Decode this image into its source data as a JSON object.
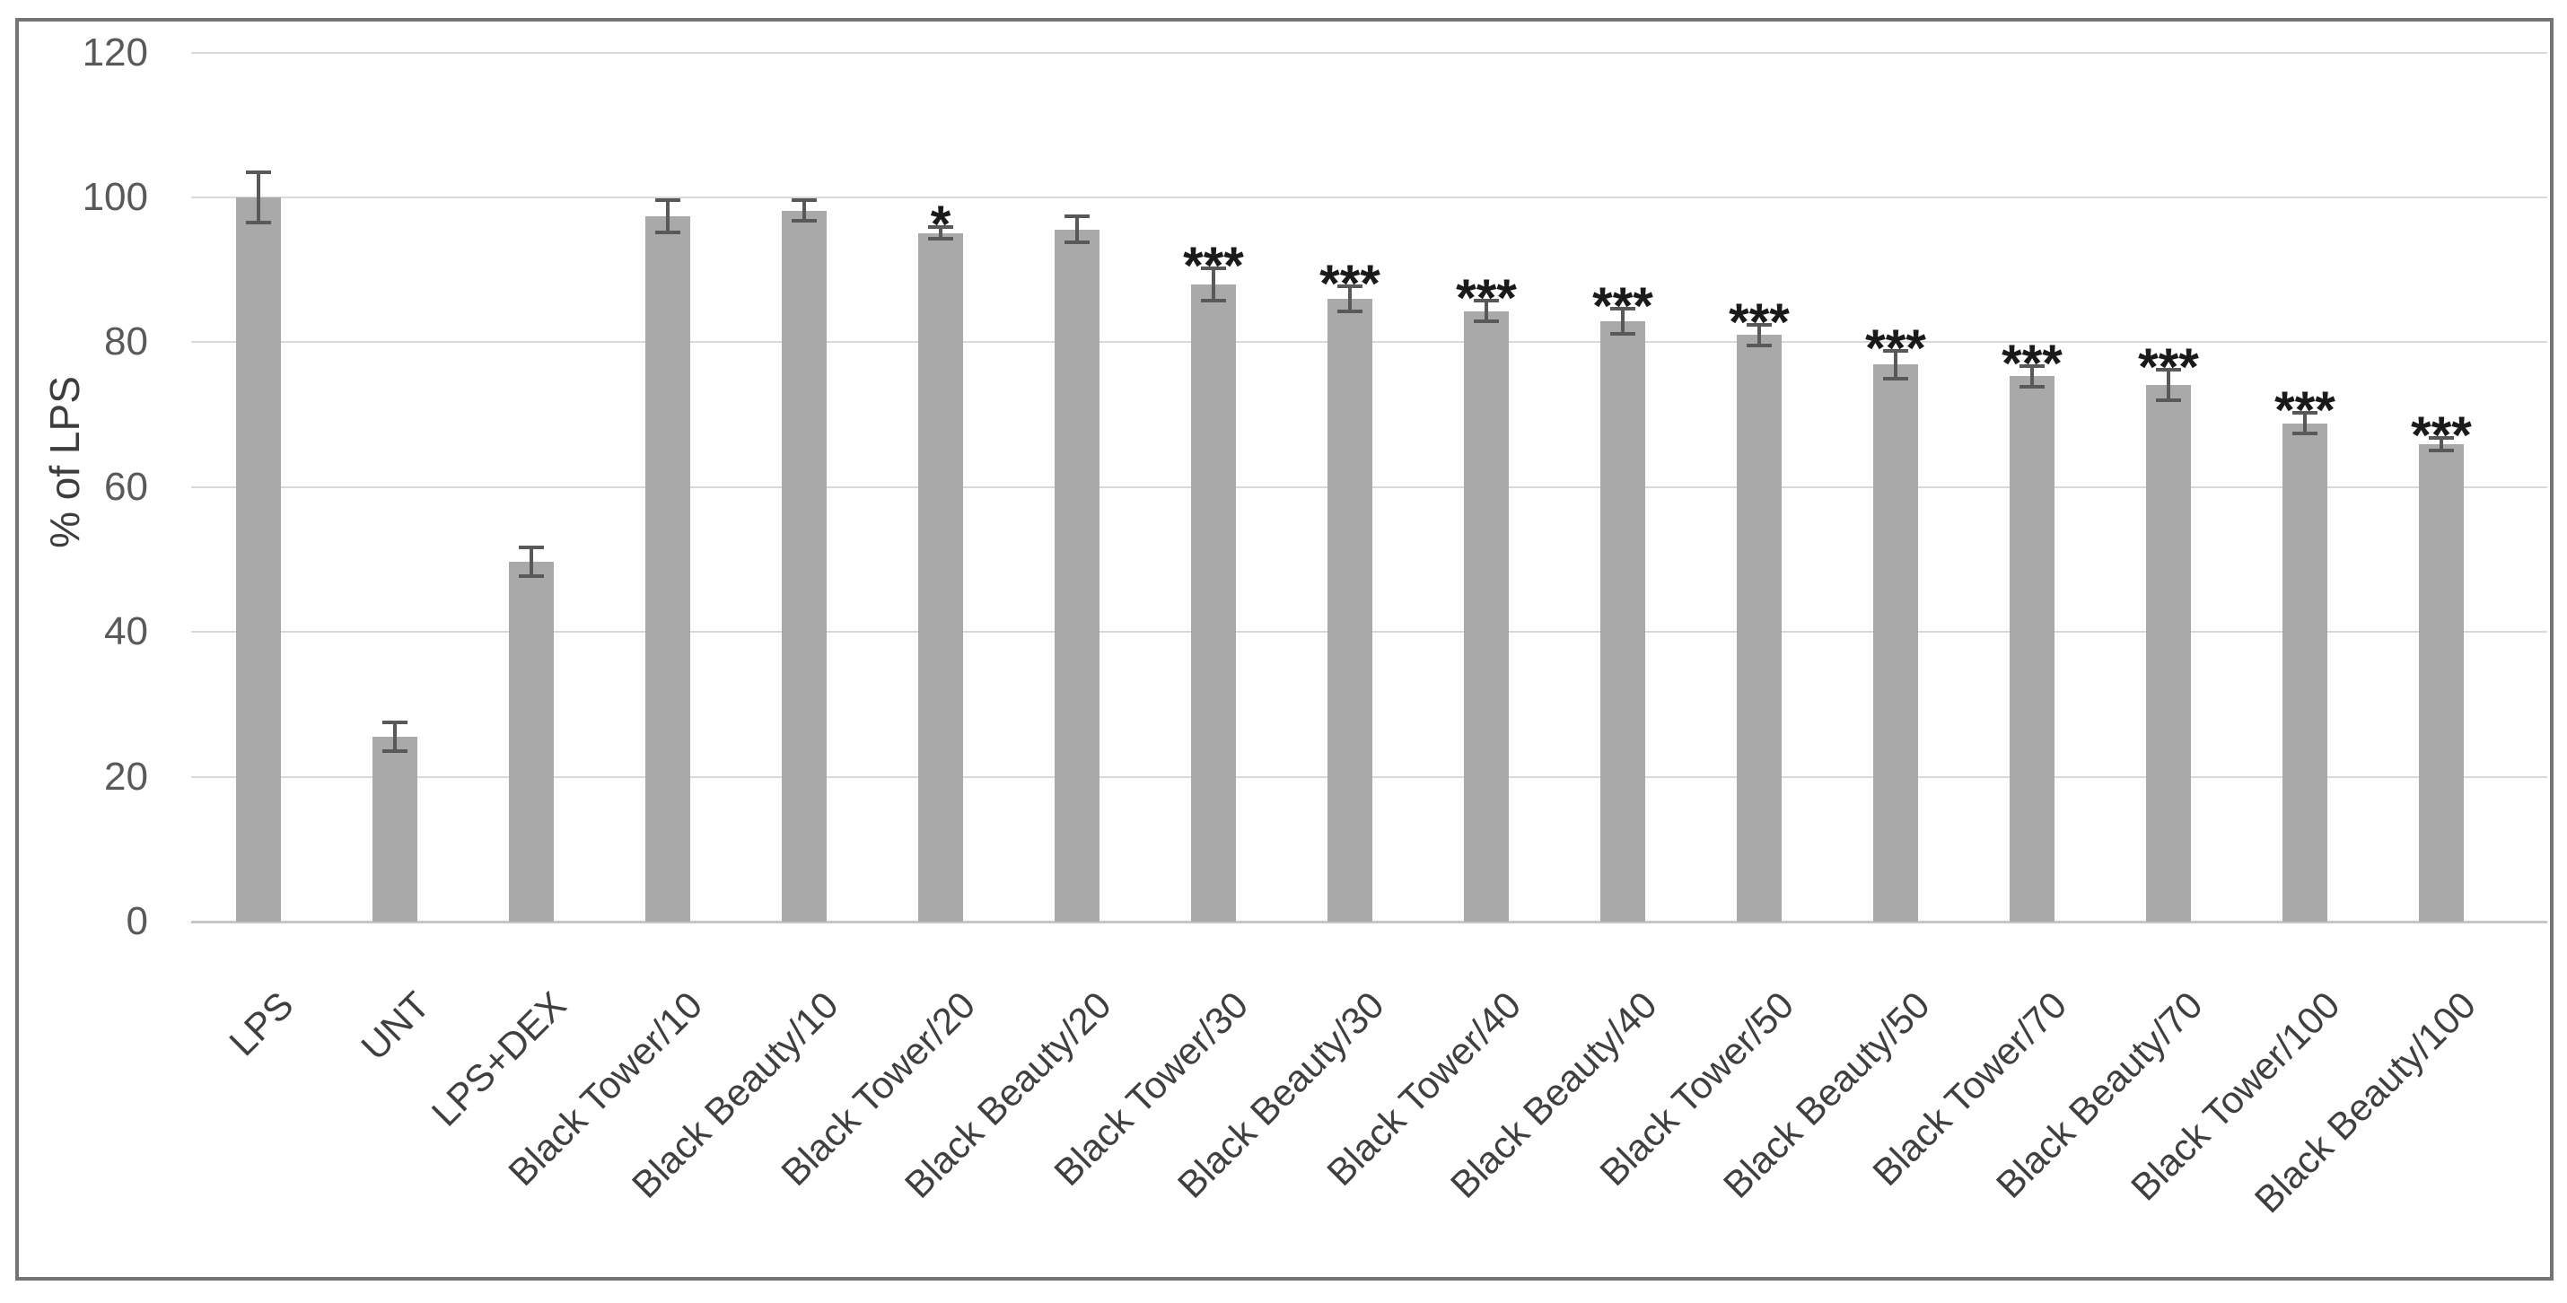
{
  "chart_data": {
    "type": "bar",
    "title": "",
    "xlabel": "",
    "ylabel": "% of LPS",
    "ylim": [
      0,
      120
    ],
    "yticks": [
      0,
      20,
      40,
      60,
      80,
      100,
      120
    ],
    "grid": true,
    "legend_position": "none",
    "categories": [
      "LPS",
      "UNT",
      "LPS+DEX",
      "Black Tower/10",
      "Black Beauty/10",
      "Black Tower/20",
      "Black Beauty/20",
      "Black Tower/30",
      "Black Beauty/30",
      "Black Tower/40",
      "Black Beauty/40",
      "Black Tower/50",
      "Black Beauty/50",
      "Black Tower/70",
      "Black Beauty/70",
      "Black Tower/100",
      "Black Beauty/100"
    ],
    "values": [
      100,
      25.5,
      49.7,
      97.4,
      98.2,
      95.1,
      95.6,
      88,
      86,
      84.3,
      82.9,
      81,
      76.9,
      75.3,
      74.1,
      68.8,
      65.9
    ],
    "errors": [
      3.5,
      2,
      2,
      2.2,
      1.4,
      0.8,
      1.8,
      2.2,
      1.7,
      1.4,
      1.7,
      1.4,
      1.9,
      1.4,
      2.1,
      1.4,
      0.9
    ],
    "significance": [
      "",
      "",
      "",
      "",
      "",
      "*",
      "",
      "***",
      "***",
      "***",
      "***",
      "***",
      "***",
      "***",
      "***",
      "***",
      "***"
    ]
  },
  "colors": {
    "bar_fill": "#A9A9A9",
    "error_bar": "#595959",
    "gridline": "#D9D9D9",
    "axis_line": "#C6C6C6",
    "tick_label": "#595959",
    "x_label": "#3F3F3F",
    "y_axis_title": "#3D3D3D",
    "significance": "#1A1A1A",
    "frame_border": "#747474",
    "background": "#FFFFFF"
  }
}
